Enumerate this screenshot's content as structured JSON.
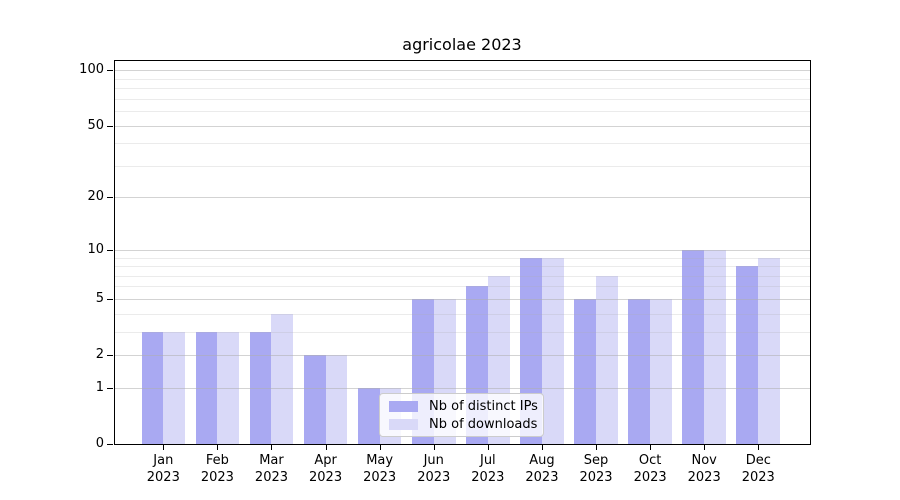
{
  "chart_data": {
    "type": "bar",
    "title": "agricolae 2023",
    "categories": [
      "Jan 2023",
      "Feb 2023",
      "Mar 2023",
      "Apr 2023",
      "May 2023",
      "Jun 2023",
      "Jul 2023",
      "Aug 2023",
      "Sep 2023",
      "Oct 2023",
      "Nov 2023",
      "Dec 2023"
    ],
    "series": [
      {
        "name": "Nb of distinct IPs",
        "color": "#a9a9f2",
        "values": [
          3,
          3,
          3,
          2,
          1,
          5,
          6,
          9,
          5,
          5,
          10,
          8
        ]
      },
      {
        "name": "Nb of downloads",
        "color": "#d9d9f8",
        "values": [
          3,
          3,
          4,
          2,
          1,
          5,
          7,
          9,
          7,
          5,
          10,
          9
        ]
      }
    ],
    "xlabel": "",
    "ylabel": "",
    "yscale": "log1p",
    "ylim": [
      0,
      113
    ],
    "y_major_ticks": [
      0,
      1,
      2,
      5,
      10,
      20,
      50,
      100
    ],
    "y_minor_ticks": [
      3,
      4,
      6,
      7,
      8,
      9,
      30,
      40,
      60,
      70,
      80,
      90
    ],
    "grid": "horizontal-above-bars",
    "legend_position": "lower-center",
    "colors": {
      "grid_major": "rgba(175,175,175,0.55)",
      "grid_minor": "rgba(175,175,175,0.25)",
      "axis": "#000000",
      "legend_border": "#cccccc"
    }
  }
}
